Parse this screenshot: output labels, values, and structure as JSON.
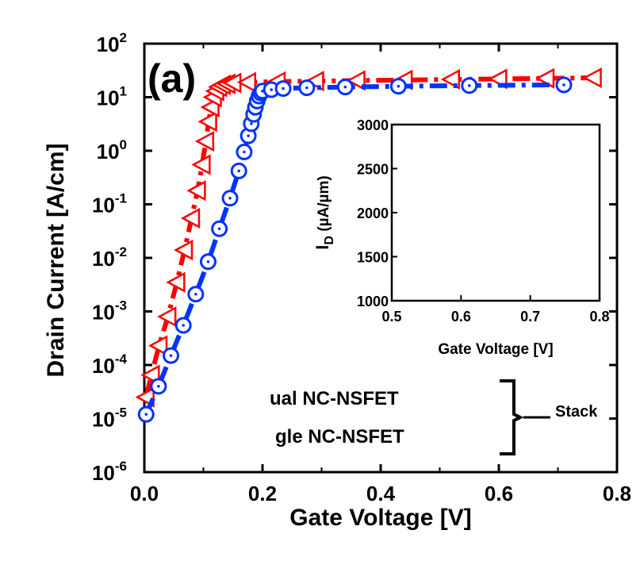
{
  "chart_data": [
    {
      "type": "line",
      "panel_label": "(a)",
      "xlabel": "Gate Voltage [V]",
      "ylabel": "Drain Current [A/cm]",
      "xlim": [
        0,
        0.8
      ],
      "ylim": [
        1e-06,
        100
      ],
      "yscale": "log",
      "x_ticks": [
        "0.0",
        "0.2",
        "0.4",
        "0.6",
        "0.8"
      ],
      "y_ticks": [
        {
          "base": "10",
          "exp": "2"
        },
        {
          "base": "10",
          "exp": "1"
        },
        {
          "base": "10",
          "exp": "0"
        },
        {
          "base": "10",
          "exp": "-1"
        },
        {
          "base": "10",
          "exp": "-2"
        },
        {
          "base": "10",
          "exp": "-3"
        },
        {
          "base": "10",
          "exp": "-4"
        },
        {
          "base": "10",
          "exp": "-5"
        },
        {
          "base": "10",
          "exp": "-6"
        }
      ],
      "series": [
        {
          "name": "Dual NC-NSFET",
          "legend_visible": "ual NC-NSFET",
          "color": "#ff0000",
          "marker": "left-triangle",
          "line_style": "dash-dot",
          "x": [
            0.003,
            0.012,
            0.025,
            0.04,
            0.055,
            0.068,
            0.08,
            0.09,
            0.098,
            0.104,
            0.109,
            0.113,
            0.117,
            0.121,
            0.126,
            0.132,
            0.14,
            0.15,
            0.175,
            0.225,
            0.29,
            0.36,
            0.44,
            0.52,
            0.6,
            0.68,
            0.76
          ],
          "y": [
            2.5e-05,
            6.5e-05,
            0.00023,
            0.0008,
            0.0035,
            0.014,
            0.055,
            0.18,
            0.55,
            1.5,
            3.5,
            6.5,
            10,
            13,
            15.5,
            17,
            17.8,
            18.5,
            19,
            19.5,
            20,
            20.5,
            21,
            21.5,
            22,
            22.5,
            23
          ]
        },
        {
          "name": "Single NC-NSFET",
          "legend_visible": "gle NC-NSFET",
          "color": "#0033ff",
          "marker": "circle",
          "line_style": "dash-dot",
          "x": [
            0.003,
            0.024,
            0.045,
            0.066,
            0.087,
            0.108,
            0.127,
            0.145,
            0.16,
            0.169,
            0.176,
            0.181,
            0.185,
            0.188,
            0.191,
            0.194,
            0.197,
            0.2,
            0.215,
            0.235,
            0.275,
            0.34,
            0.43,
            0.55,
            0.71
          ],
          "y": [
            1.2e-05,
            4e-05,
            0.00015,
            0.00055,
            0.0021,
            0.0085,
            0.035,
            0.13,
            0.42,
            0.95,
            1.9,
            3.2,
            4.8,
            6.5,
            8.5,
            10.5,
            12,
            13,
            13.8,
            14.5,
            15,
            15.5,
            16,
            16.5,
            17
          ]
        }
      ]
    },
    {
      "type": "line",
      "inset": true,
      "xlabel": "Gate Voltage [V]",
      "ylabel": {
        "main": "I",
        "sub": "D",
        "rest": " (µA/µm)"
      },
      "xlim": [
        0.5,
        0.8
      ],
      "ylim": [
        1000,
        3000
      ],
      "x_ticks": [
        "0.5",
        "0.6",
        "0.7",
        "0.8"
      ],
      "y_ticks": [
        "3000",
        "2500",
        "2000",
        "1500",
        "1000"
      ],
      "series": []
    }
  ],
  "legend": {
    "bracket_label": "Stack"
  }
}
